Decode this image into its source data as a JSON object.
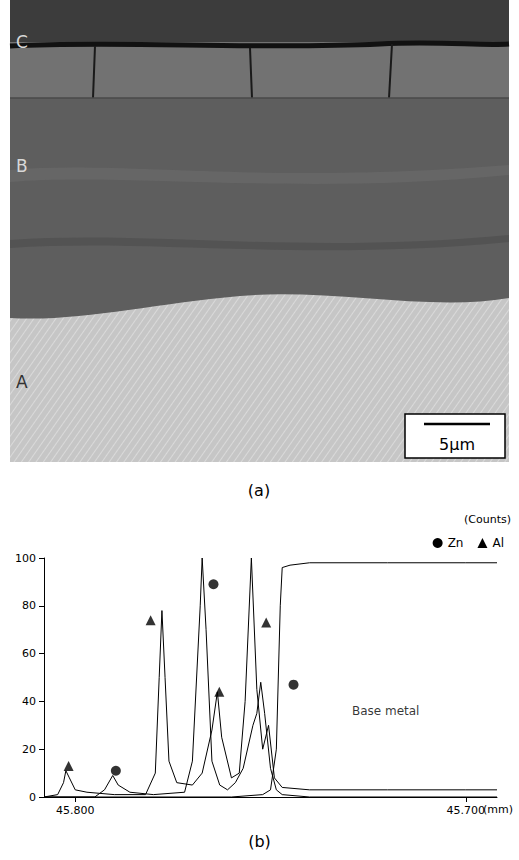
{
  "micrograph": {
    "caption": "(a)",
    "layers": [
      {
        "label": "C"
      },
      {
        "label": "B"
      },
      {
        "label": "A"
      }
    ],
    "scale_bar": "5μm"
  },
  "chart_data": {
    "type": "line",
    "caption": "(b)",
    "x_label": "(mm)",
    "y_label": "(Counts)",
    "xlim": [
      45.808,
      45.692
    ],
    "xticks": [
      {
        "value": 45.8,
        "label": "45.800"
      },
      {
        "value": 45.7,
        "label": "45.700"
      }
    ],
    "ylim": [
      0,
      100
    ],
    "yticks": [
      0,
      20,
      40,
      60,
      80,
      100
    ],
    "grid": false,
    "legend": "upper right",
    "series": [
      {
        "name": "Zn",
        "color": "#000000",
        "marker": "circle",
        "x": [
          45.808,
          45.795,
          45.7925,
          45.7904,
          45.789,
          45.786,
          45.78,
          45.772,
          45.77,
          45.768,
          45.7675,
          45.7665,
          45.765,
          45.763,
          45.761,
          45.759,
          45.757,
          45.7545,
          45.7535,
          45.7525,
          45.7515,
          45.75,
          45.7485,
          45.747,
          45.74,
          45.692
        ],
        "values": [
          0,
          0,
          3,
          9,
          5,
          2,
          1,
          2,
          15,
          80,
          100,
          70,
          15,
          5,
          3,
          6,
          12,
          30,
          35,
          48,
          35,
          12,
          3,
          1,
          0,
          0
        ],
        "marked_points": [
          [
            45.7896,
            11
          ],
          [
            45.7646,
            89
          ],
          [
            45.7441,
            47
          ]
        ]
      },
      {
        "name": "Al",
        "color": "#000000",
        "marker": "triangle",
        "x": [
          45.808,
          45.8045,
          45.803,
          45.8024,
          45.8015,
          45.8,
          45.797,
          45.79,
          45.782,
          45.7795,
          45.7785,
          45.7778,
          45.777,
          45.776,
          45.774,
          45.77,
          45.7675,
          45.765,
          45.7636,
          45.7625,
          45.76,
          45.758,
          45.7565,
          45.7549,
          45.7535,
          45.752,
          45.7505,
          45.749,
          45.747,
          45.74,
          45.72,
          45.7,
          45.692
        ],
        "values": [
          0,
          1,
          6,
          11,
          8,
          3,
          2,
          1,
          1,
          10,
          50,
          78,
          50,
          15,
          6,
          5,
          10,
          28,
          44,
          25,
          8,
          10,
          40,
          100,
          45,
          20,
          30,
          8,
          4,
          3,
          3,
          3,
          3
        ],
        "marked_points": [
          [
            45.8017,
            13
          ],
          [
            45.7807,
            74
          ],
          [
            45.7631,
            44
          ],
          [
            45.7511,
            73
          ]
        ]
      },
      {
        "color": "#000000",
        "x": [
          45.808,
          45.76,
          45.752,
          45.75,
          45.7485,
          45.7475,
          45.747,
          45.745,
          45.74,
          45.72,
          45.7,
          45.692
        ],
        "values": [
          0,
          0,
          1,
          3,
          20,
          80,
          96,
          97,
          98,
          98,
          98,
          98
        ]
      }
    ],
    "annotations": [
      {
        "text": "Base metal",
        "x": 45.7205,
        "y": 36
      }
    ]
  }
}
